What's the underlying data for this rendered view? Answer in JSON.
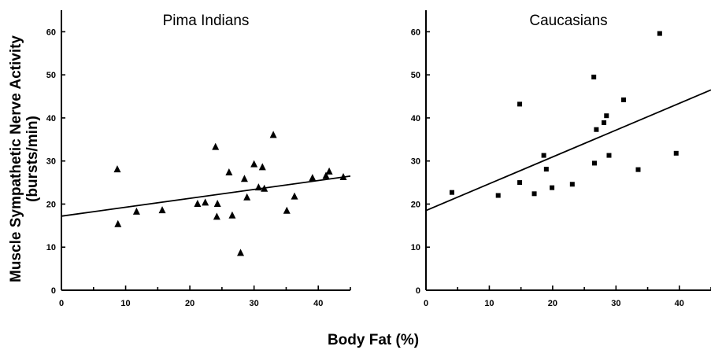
{
  "figure": {
    "ylabel_line1": "Muscle Sympathetic Nerve Activity",
    "ylabel_line2": "(bursts/min)",
    "xlabel": "Body Fat (%)"
  },
  "chart_data": [
    {
      "type": "scatter",
      "title": "Pima Indians",
      "xlabel": "Body Fat (%)",
      "ylabel": "Muscle Sympathetic Nerve Activity (bursts/min)",
      "xlim": [
        0,
        45
      ],
      "ylim": [
        0,
        65
      ],
      "xticks": [
        0,
        10,
        20,
        30,
        40
      ],
      "yticks": [
        0,
        10,
        20,
        30,
        40,
        50,
        60
      ],
      "marker": "triangle",
      "grid": false,
      "points": [
        {
          "x": 8.7,
          "y": 28
        },
        {
          "x": 8.8,
          "y": 15.3
        },
        {
          "x": 11.7,
          "y": 18.2
        },
        {
          "x": 15.7,
          "y": 18.5
        },
        {
          "x": 21.2,
          "y": 20
        },
        {
          "x": 22.4,
          "y": 20.3
        },
        {
          "x": 24.0,
          "y": 33.2
        },
        {
          "x": 24.2,
          "y": 17
        },
        {
          "x": 24.3,
          "y": 20
        },
        {
          "x": 26.1,
          "y": 27.3
        },
        {
          "x": 26.6,
          "y": 17.3
        },
        {
          "x": 27.9,
          "y": 8.6
        },
        {
          "x": 28.5,
          "y": 25.8
        },
        {
          "x": 28.9,
          "y": 21.5
        },
        {
          "x": 30.0,
          "y": 29.2
        },
        {
          "x": 30.7,
          "y": 23.8
        },
        {
          "x": 31.3,
          "y": 28.5
        },
        {
          "x": 31.6,
          "y": 23.5
        },
        {
          "x": 33.0,
          "y": 36
        },
        {
          "x": 35.1,
          "y": 18.4
        },
        {
          "x": 36.3,
          "y": 21.7
        },
        {
          "x": 39.1,
          "y": 26
        },
        {
          "x": 41.2,
          "y": 26.5
        },
        {
          "x": 41.7,
          "y": 27.5
        },
        {
          "x": 43.9,
          "y": 26.2
        }
      ],
      "fit_line": {
        "x": [
          0,
          45
        ],
        "y": [
          17.2,
          26.5
        ]
      }
    },
    {
      "type": "scatter",
      "title": "Caucasians",
      "xlabel": "Body Fat (%)",
      "ylabel": "",
      "xlim": [
        0,
        45
      ],
      "ylim": [
        0,
        65
      ],
      "xticks": [
        0,
        10,
        20,
        30,
        40
      ],
      "yticks": [
        0,
        10,
        20,
        30,
        40,
        50,
        60
      ],
      "marker": "square",
      "grid": false,
      "points": [
        {
          "x": 4.1,
          "y": 22.7
        },
        {
          "x": 11.4,
          "y": 22
        },
        {
          "x": 14.8,
          "y": 43.2
        },
        {
          "x": 14.8,
          "y": 25
        },
        {
          "x": 17.1,
          "y": 22.4
        },
        {
          "x": 18.6,
          "y": 31.3
        },
        {
          "x": 19.0,
          "y": 28.1
        },
        {
          "x": 19.9,
          "y": 23.8
        },
        {
          "x": 23.1,
          "y": 24.6
        },
        {
          "x": 26.5,
          "y": 49.5
        },
        {
          "x": 26.6,
          "y": 29.5
        },
        {
          "x": 26.9,
          "y": 37.3
        },
        {
          "x": 28.1,
          "y": 38.9
        },
        {
          "x": 28.5,
          "y": 40.5
        },
        {
          "x": 28.9,
          "y": 31.3
        },
        {
          "x": 31.2,
          "y": 44.2
        },
        {
          "x": 33.5,
          "y": 28
        },
        {
          "x": 36.9,
          "y": 59.6
        },
        {
          "x": 39.5,
          "y": 31.8
        }
      ],
      "fit_line": {
        "x": [
          0,
          45
        ],
        "y": [
          18.5,
          46.5
        ]
      }
    }
  ]
}
